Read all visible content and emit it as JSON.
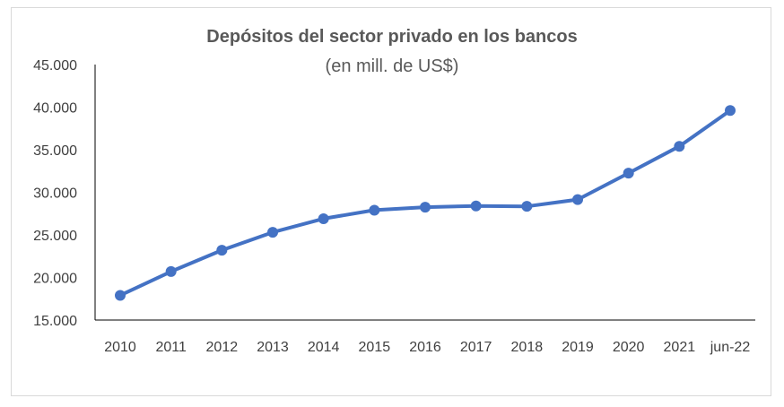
{
  "chart_data": {
    "type": "line",
    "title": "Depósitos del sector privado en los bancos",
    "subtitle": "(en mill. de US$)",
    "categories": [
      "2010",
      "2011",
      "2012",
      "2013",
      "2014",
      "2015",
      "2016",
      "2017",
      "2018",
      "2019",
      "2020",
      "2021",
      "jun-22"
    ],
    "series": [
      {
        "values": [
          17900,
          20700,
          23200,
          25300,
          26900,
          27900,
          28250,
          28400,
          28350,
          29150,
          32250,
          35400,
          39600
        ]
      }
    ],
    "ylim": [
      15000,
      45000
    ],
    "yticks": [
      15000,
      20000,
      25000,
      30000,
      35000,
      40000,
      45000
    ],
    "ytick_labels": [
      "15.000",
      "20.000",
      "25.000",
      "30.000",
      "35.000",
      "40.000",
      "45.000"
    ],
    "grid": false,
    "legend": "none",
    "colors": {
      "line": "#4472c4",
      "axis": "#000000",
      "text": "#404040",
      "title": "#595959",
      "border": "#d9d9d9"
    }
  }
}
